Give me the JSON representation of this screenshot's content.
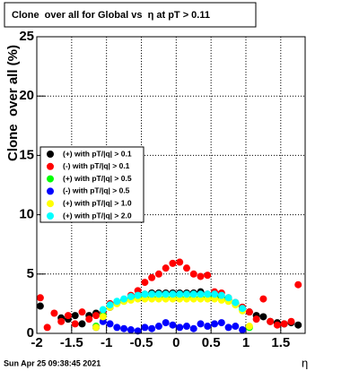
{
  "chart_data": {
    "type": "scatter",
    "title": "Clone  over all for Global vs  η at pT > 0.11",
    "y_label": "Clone  over all (%)",
    "x_label": "η",
    "date": "Sun Apr 25 09:38:45 2021",
    "xlim": [
      -2,
      1.85
    ],
    "ylim": [
      0,
      25
    ],
    "xticks": [
      -2,
      -1.5,
      -1,
      -0.5,
      0,
      0.5,
      1,
      1.5
    ],
    "yticks": [
      0,
      5,
      10,
      15,
      20,
      25
    ],
    "grid": true,
    "legend": "left",
    "x": [
      -1.95,
      -1.85,
      -1.75,
      -1.65,
      -1.55,
      -1.45,
      -1.35,
      -1.25,
      -1.15,
      -1.05,
      -0.95,
      -0.85,
      -0.75,
      -0.65,
      -0.55,
      -0.45,
      -0.35,
      -0.25,
      -0.15,
      -0.05,
      0.05,
      0.15,
      0.25,
      0.35,
      0.45,
      0.55,
      0.65,
      0.75,
      0.85,
      0.95,
      1.05,
      1.15,
      1.25,
      1.35,
      1.45,
      1.55,
      1.65,
      1.75
    ],
    "series": [
      {
        "name": "(+) with pT/|q| > 0.1",
        "color": "#000000",
        "values": [
          2.3,
          null,
          null,
          1.3,
          1.2,
          1.5,
          0.8,
          1.5,
          1.7,
          1.8,
          2.2,
          2.6,
          2.8,
          3.0,
          3.2,
          3.3,
          3.4,
          3.4,
          3.4,
          3.4,
          3.4,
          3.4,
          3.4,
          3.5,
          3.3,
          3.2,
          3.0,
          2.8,
          2.5,
          2.2,
          1.8,
          1.5,
          1.4,
          1.0,
          0.9,
          0.8,
          0.9,
          0.7
        ]
      },
      {
        "name": "(-) with pT/|q| > 0.1",
        "color": "#ff0000",
        "values": [
          3.0,
          0.5,
          1.7,
          1.0,
          1.5,
          0.8,
          1.8,
          1.2,
          1.5,
          1.8,
          2.5,
          2.6,
          2.8,
          3.2,
          3.6,
          4.3,
          4.7,
          5.0,
          5.5,
          5.9,
          6.0,
          5.5,
          5.0,
          4.8,
          4.9,
          3.5,
          3.4,
          3.0,
          2.6,
          2.2,
          1.8,
          1.2,
          2.9,
          1.0,
          0.7,
          0.8,
          1.0,
          4.1
        ]
      },
      {
        "name": "(+) with pT/|q| > 0.5",
        "color": "#00ff00",
        "values": [
          null,
          null,
          null,
          null,
          null,
          null,
          null,
          null,
          0.6,
          1.5,
          2.3,
          2.6,
          2.8,
          2.9,
          3.0,
          3.0,
          3.0,
          3.0,
          3.0,
          3.0,
          3.0,
          3.0,
          3.0,
          3.0,
          3.0,
          3.0,
          2.9,
          2.8,
          2.5,
          2.0,
          0.5,
          null,
          null,
          null,
          null,
          null,
          null,
          null
        ]
      },
      {
        "name": "(-) with pT/|q| > 0.5",
        "color": "#0000ff",
        "values": [
          null,
          null,
          null,
          null,
          null,
          null,
          null,
          null,
          0.5,
          1.0,
          0.8,
          0.5,
          0.4,
          0.3,
          0.2,
          0.5,
          0.4,
          0.6,
          0.9,
          0.7,
          0.5,
          0.6,
          0.4,
          0.8,
          0.6,
          0.8,
          0.9,
          0.5,
          0.6,
          0.3,
          null,
          null,
          null,
          null,
          null,
          null,
          null,
          null
        ]
      },
      {
        "name": "(+) with pT/|q| > 1.0",
        "color": "#ffff00",
        "values": [
          null,
          null,
          null,
          null,
          null,
          null,
          null,
          null,
          0.5,
          1.4,
          2.2,
          2.5,
          2.7,
          2.8,
          2.9,
          2.9,
          2.9,
          2.9,
          2.9,
          2.9,
          2.9,
          2.9,
          2.9,
          2.9,
          2.9,
          2.9,
          2.8,
          2.7,
          2.4,
          1.9,
          0.6,
          null,
          null,
          null,
          null,
          null,
          null,
          null
        ]
      },
      {
        "name": "(+) with pT/|q| > 2.0",
        "color": "#00ffff",
        "values": [
          null,
          null,
          null,
          null,
          null,
          null,
          null,
          null,
          null,
          2.0,
          2.4,
          2.7,
          2.9,
          3.1,
          3.2,
          3.3,
          3.3,
          3.3,
          3.3,
          3.3,
          3.3,
          3.3,
          3.3,
          3.3,
          3.3,
          3.3,
          3.2,
          3.0,
          2.6,
          2.1,
          null,
          null,
          null,
          null,
          null,
          null,
          null,
          null
        ]
      }
    ]
  }
}
